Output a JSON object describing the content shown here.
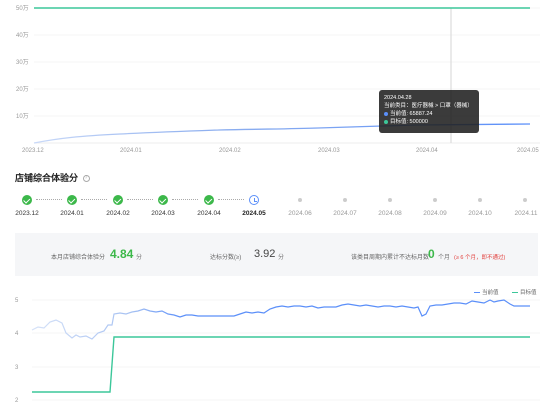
{
  "top_chart": {
    "y_ticks": [
      "50万",
      "40万",
      "30万",
      "20万",
      "10万"
    ],
    "x_ticks": [
      "2023.12",
      "2024.01",
      "2024.02",
      "2024.03",
      "2024.04",
      "2024.05"
    ],
    "colors": {
      "current": "#5b8ff9",
      "target": "#3cc79a"
    }
  },
  "tooltip": {
    "date": "2024.04.28",
    "category": "当前类目：医疗器械 > 口罩（器械）",
    "current_label": "当前值: 65887.24",
    "target_label": "目标值: 500000"
  },
  "section": {
    "title": "店铺综合体验分",
    "help": "?"
  },
  "timeline": [
    {
      "label": "2023.12",
      "state": "done"
    },
    {
      "label": "2024.01",
      "state": "done"
    },
    {
      "label": "2024.02",
      "state": "done"
    },
    {
      "label": "2024.03",
      "state": "done"
    },
    {
      "label": "2024.04",
      "state": "done"
    },
    {
      "label": "2024.05",
      "state": "current"
    },
    {
      "label": "2024.06",
      "state": "future"
    },
    {
      "label": "2024.07",
      "state": "future"
    },
    {
      "label": "2024.08",
      "state": "future"
    },
    {
      "label": "2024.09",
      "state": "future"
    },
    {
      "label": "2024.10",
      "state": "future"
    },
    {
      "label": "2024.11",
      "state": "future"
    }
  ],
  "score_panel": {
    "month_score_label": "本月店铺综合体验分",
    "month_score_value": "4.84",
    "month_score_unit": "分",
    "standard_label": "达标分数(≥)",
    "standard_value": "3.92",
    "standard_unit": "分",
    "fail_label": "该类目周期内累计不达标月数",
    "fail_value": "0",
    "fail_unit": "个月",
    "fail_note": "(≥ 6 个月，即不通过)"
  },
  "bottom_chart": {
    "y_ticks": [
      "5",
      "4",
      "3",
      "2"
    ],
    "legend_current": "当前值",
    "legend_target": "目标值",
    "colors": {
      "current": "#5b8ff9",
      "target": "#3cc79a"
    }
  }
}
